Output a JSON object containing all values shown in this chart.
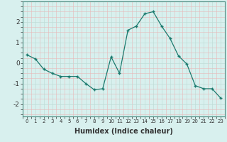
{
  "x": [
    0,
    1,
    2,
    3,
    4,
    5,
    6,
    7,
    8,
    9,
    10,
    11,
    12,
    13,
    14,
    15,
    16,
    17,
    18,
    19,
    20,
    21,
    22,
    23
  ],
  "y": [
    0.4,
    0.2,
    -0.3,
    -0.5,
    -0.65,
    -0.65,
    -0.65,
    -1.0,
    -1.3,
    -1.25,
    0.3,
    -0.5,
    1.6,
    1.8,
    2.4,
    2.5,
    1.8,
    1.2,
    0.35,
    -0.05,
    -1.1,
    -1.25,
    -1.25,
    -1.7
  ],
  "xlabel": "Humidex (Indice chaleur)",
  "ylim": [
    -2.6,
    3.0
  ],
  "xlim": [
    -0.5,
    23.5
  ],
  "line_color": "#1a7a6e",
  "marker_color": "#1a7a6e",
  "bg_color": "#d8f0ee",
  "grid_color": "#c0dcd8",
  "tick_color": "#333333",
  "xlabel_fontsize": 7,
  "ytick_fontsize": 6.5,
  "xtick_fontsize": 5.0,
  "yticks": [
    -2,
    -1,
    0,
    1,
    2
  ],
  "xticks": [
    0,
    1,
    2,
    3,
    4,
    5,
    6,
    7,
    8,
    9,
    10,
    11,
    12,
    13,
    14,
    15,
    16,
    17,
    18,
    19,
    20,
    21,
    22,
    23
  ]
}
